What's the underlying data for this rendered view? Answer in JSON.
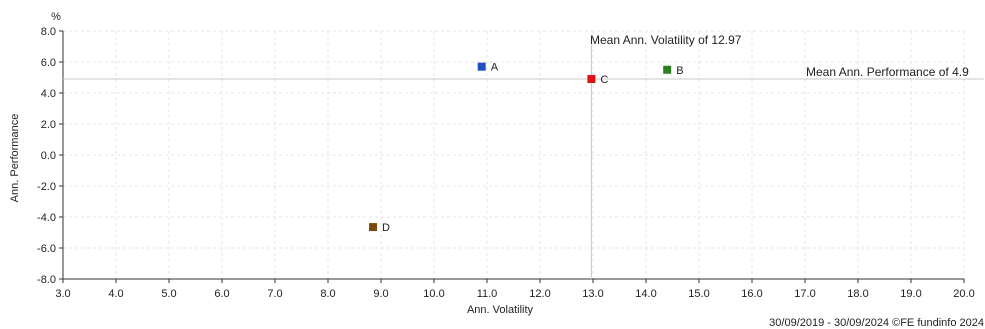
{
  "chart_data": {
    "type": "scatter",
    "xlabel": "Ann. Volatility",
    "ylabel": "Ann. Performance",
    "y_unit": "%",
    "xlim": [
      3.0,
      20.0
    ],
    "ylim": [
      -8.0,
      8.0
    ],
    "x_ticks": [
      "3.0",
      "4.0",
      "5.0",
      "6.0",
      "7.0",
      "8.0",
      "9.0",
      "10.0",
      "11.0",
      "12.0",
      "13.0",
      "14.0",
      "15.0",
      "16.0",
      "17.0",
      "18.0",
      "19.0",
      "20.0"
    ],
    "y_ticks": [
      "8.0",
      "6.0",
      "4.0",
      "2.0",
      "0.0",
      "-2.0",
      "-4.0",
      "-6.0",
      "-8.0"
    ],
    "grid": true,
    "points": [
      {
        "label": "A",
        "x": 10.9,
        "y": 5.7,
        "color": "#1f4fbf"
      },
      {
        "label": "B",
        "x": 14.4,
        "y": 5.5,
        "color": "#2e7d1e"
      },
      {
        "label": "C",
        "x": 12.97,
        "y": 4.9,
        "color": "#e0101a"
      },
      {
        "label": "D",
        "x": 8.85,
        "y": -4.65,
        "color": "#7a4a0a"
      }
    ],
    "mean_volatility": 12.97,
    "mean_performance": 4.9,
    "mean_volatility_label": "Mean Ann. Volatility of 12.97",
    "mean_performance_label": "Mean Ann. Performance of 4.9"
  },
  "footer": "30/09/2019 - 30/09/2024 ©FE fundinfo 2024"
}
